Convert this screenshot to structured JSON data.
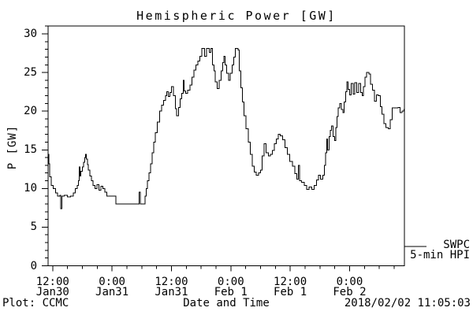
{
  "title": "Hemispheric Power [GW]",
  "y_axis_title": "P [GW]",
  "legend": {
    "line1": "SWPC",
    "line2": "5-min HPI"
  },
  "footer": {
    "left": "Plot: CCMC",
    "center": "Date and Time",
    "right": "2018/02/02 11:05:03"
  },
  "colors": {
    "line": "#000000",
    "background": "#ffffff",
    "text": "#000000"
  },
  "chart_data": {
    "type": "line",
    "title": "Hemispheric Power [GW]",
    "xlabel": "Date and Time",
    "ylabel": "P [GW]",
    "ylim": [
      0,
      30
    ],
    "grid": false,
    "legend_position": "outside-right-bottom",
    "y_major_ticks": [
      0,
      5,
      10,
      15,
      20,
      25,
      30
    ],
    "y_minor_step_gw": 1,
    "x_span_hours": 72,
    "x_start_hours_after_jan30_0000": 11.08,
    "x_minor_step_hours": 3,
    "x_major_ticks": [
      {
        "hours_after_jan30_0000": 12,
        "time": "12:00",
        "date": "Jan30"
      },
      {
        "hours_after_jan30_0000": 24,
        "time": "0:00",
        "date": "Jan31"
      },
      {
        "hours_after_jan30_0000": 36,
        "time": "12:00",
        "date": "Jan31"
      },
      {
        "hours_after_jan30_0000": 48,
        "time": "0:00",
        "date": "Feb 1"
      },
      {
        "hours_after_jan30_0000": 60,
        "time": "12:00",
        "date": "Feb 1"
      },
      {
        "hours_after_jan30_0000": 72,
        "time": "0:00",
        "date": "Feb 2"
      }
    ],
    "series": [
      {
        "name": "SWPC 5-min HPI",
        "step": true,
        "units": "GW",
        "points_t_hours_vs_gw": [
          [
            0,
            14.4
          ],
          [
            0.15,
            13.2
          ],
          [
            0.35,
            11.5
          ],
          [
            0.6,
            10.4
          ],
          [
            1.0,
            10.0
          ],
          [
            1.5,
            9.4
          ],
          [
            1.9,
            9.0
          ],
          [
            2.4,
            9.1
          ],
          [
            2.55,
            7.4
          ],
          [
            2.75,
            9.0
          ],
          [
            3.3,
            9.1
          ],
          [
            3.9,
            8.9
          ],
          [
            4.5,
            9.0
          ],
          [
            5.1,
            9.4
          ],
          [
            5.5,
            10.0
          ],
          [
            5.9,
            10.4
          ],
          [
            6.1,
            11.0
          ],
          [
            6.3,
            12.8
          ],
          [
            6.45,
            11.6
          ],
          [
            6.65,
            12.2
          ],
          [
            6.9,
            12.8
          ],
          [
            7.15,
            13.4
          ],
          [
            7.4,
            14.0
          ],
          [
            7.6,
            14.4
          ],
          [
            7.75,
            13.8
          ],
          [
            7.95,
            13.1
          ],
          [
            8.15,
            12.4
          ],
          [
            8.45,
            11.6
          ],
          [
            8.75,
            11.0
          ],
          [
            9.1,
            10.4
          ],
          [
            9.5,
            10.0
          ],
          [
            9.9,
            10.5
          ],
          [
            10.3,
            9.8
          ],
          [
            10.7,
            10.3
          ],
          [
            11.1,
            10.0
          ],
          [
            11.5,
            9.5
          ],
          [
            11.9,
            9.0
          ],
          [
            13.7,
            8.0
          ],
          [
            18.4,
            9.5
          ],
          [
            18.6,
            8.0
          ],
          [
            19.45,
            8.0
          ],
          [
            19.6,
            9.0
          ],
          [
            19.85,
            10.0
          ],
          [
            20.1,
            11.0
          ],
          [
            20.4,
            12.0
          ],
          [
            20.7,
            13.2
          ],
          [
            21.0,
            14.6
          ],
          [
            21.35,
            16.0
          ],
          [
            21.7,
            17.2
          ],
          [
            22.1,
            18.6
          ],
          [
            22.5,
            20.0
          ],
          [
            22.9,
            20.8
          ],
          [
            23.3,
            21.4
          ],
          [
            23.7,
            22.0
          ],
          [
            24.0,
            22.5
          ],
          [
            24.3,
            21.9
          ],
          [
            24.6,
            22.4
          ],
          [
            24.9,
            23.2
          ],
          [
            25.3,
            22.0
          ],
          [
            25.7,
            20.3
          ],
          [
            26.0,
            19.4
          ],
          [
            26.35,
            20.5
          ],
          [
            26.7,
            21.6
          ],
          [
            27.0,
            22.3
          ],
          [
            27.3,
            24.0
          ],
          [
            27.5,
            22.6
          ],
          [
            27.8,
            22.3
          ],
          [
            28.2,
            22.7
          ],
          [
            28.7,
            23.4
          ],
          [
            29.1,
            24.4
          ],
          [
            29.5,
            25.3
          ],
          [
            29.9,
            26.0
          ],
          [
            30.3,
            26.5
          ],
          [
            30.7,
            27.1
          ],
          [
            31.1,
            28.1
          ],
          [
            31.6,
            27.1
          ],
          [
            32.0,
            28.1
          ],
          [
            32.6,
            27.6
          ],
          [
            32.9,
            28.1
          ],
          [
            33.2,
            26.0
          ],
          [
            33.5,
            25.2
          ],
          [
            33.8,
            23.8
          ],
          [
            34.2,
            22.9
          ],
          [
            34.6,
            24.0
          ],
          [
            34.95,
            25.2
          ],
          [
            35.25,
            26.3
          ],
          [
            35.5,
            27.1
          ],
          [
            35.8,
            26.0
          ],
          [
            36.1,
            24.9
          ],
          [
            36.45,
            24.0
          ],
          [
            36.8,
            24.9
          ],
          [
            37.2,
            26.0
          ],
          [
            37.55,
            27.0
          ],
          [
            37.85,
            28.1
          ],
          [
            38.35,
            27.9
          ],
          [
            38.65,
            25.2
          ],
          [
            38.95,
            23.0
          ],
          [
            39.25,
            21.2
          ],
          [
            39.6,
            19.4
          ],
          [
            40.0,
            17.7
          ],
          [
            40.45,
            16.0
          ],
          [
            40.85,
            14.4
          ],
          [
            41.25,
            12.9
          ],
          [
            41.65,
            12.1
          ],
          [
            42.05,
            11.7
          ],
          [
            42.5,
            12.0
          ],
          [
            42.9,
            12.4
          ],
          [
            43.25,
            14.2
          ],
          [
            43.65,
            15.8
          ],
          [
            44.05,
            14.6
          ],
          [
            44.5,
            14.2
          ],
          [
            44.9,
            14.4
          ],
          [
            45.3,
            14.9
          ],
          [
            45.7,
            15.8
          ],
          [
            46.1,
            16.4
          ],
          [
            46.5,
            17.0
          ],
          [
            46.95,
            16.8
          ],
          [
            47.4,
            16.3
          ],
          [
            47.85,
            15.3
          ],
          [
            48.35,
            14.4
          ],
          [
            48.85,
            13.5
          ],
          [
            49.35,
            12.9
          ],
          [
            49.85,
            11.9
          ],
          [
            50.25,
            11.2
          ],
          [
            50.55,
            13.0
          ],
          [
            50.8,
            11.0
          ],
          [
            51.25,
            10.8
          ],
          [
            51.75,
            10.4
          ],
          [
            52.25,
            9.9
          ],
          [
            52.75,
            10.2
          ],
          [
            53.25,
            9.9
          ],
          [
            53.75,
            10.4
          ],
          [
            54.25,
            11.1
          ],
          [
            54.65,
            11.7
          ],
          [
            55.05,
            11.2
          ],
          [
            55.5,
            11.7
          ],
          [
            55.85,
            13.0
          ],
          [
            56.1,
            14.6
          ],
          [
            56.3,
            16.4
          ],
          [
            56.5,
            15.0
          ],
          [
            56.75,
            16.7
          ],
          [
            57.0,
            17.5
          ],
          [
            57.3,
            18.1
          ],
          [
            57.6,
            16.7
          ],
          [
            57.9,
            16.2
          ],
          [
            58.15,
            17.9
          ],
          [
            58.4,
            19.3
          ],
          [
            58.65,
            20.4
          ],
          [
            58.95,
            21.0
          ],
          [
            59.25,
            20.2
          ],
          [
            59.55,
            19.8
          ],
          [
            59.85,
            21.2
          ],
          [
            60.15,
            22.5
          ],
          [
            60.4,
            23.8
          ],
          [
            60.65,
            22.8
          ],
          [
            60.9,
            22.1
          ],
          [
            61.25,
            23.6
          ],
          [
            61.65,
            22.2
          ],
          [
            61.95,
            23.7
          ],
          [
            62.35,
            22.4
          ],
          [
            62.75,
            23.6
          ],
          [
            63.15,
            22.4
          ],
          [
            63.45,
            22.0
          ],
          [
            63.75,
            23.2
          ],
          [
            64.05,
            24.4
          ],
          [
            64.35,
            25.0
          ],
          [
            64.85,
            24.8
          ],
          [
            65.15,
            23.5
          ],
          [
            65.55,
            22.7
          ],
          [
            65.95,
            21.3
          ],
          [
            66.35,
            22.1
          ],
          [
            66.75,
            22.0
          ],
          [
            67.15,
            20.6
          ],
          [
            67.45,
            19.6
          ],
          [
            67.85,
            18.4
          ],
          [
            68.25,
            17.9
          ],
          [
            68.75,
            17.7
          ],
          [
            69.15,
            18.9
          ],
          [
            69.55,
            20.4
          ],
          [
            70.25,
            20.4
          ],
          [
            70.75,
            20.5
          ],
          [
            71.15,
            19.8
          ],
          [
            71.55,
            20.0
          ],
          [
            71.95,
            20.2
          ],
          [
            72.0,
            20.2
          ]
        ]
      }
    ]
  }
}
